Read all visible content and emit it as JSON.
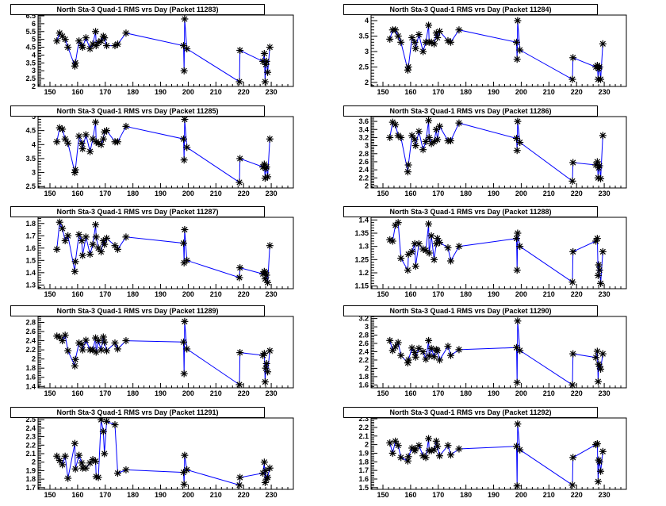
{
  "line_color": "#0000ff",
  "marker_color": "#000000",
  "x_days": [
    152.5,
    153.5,
    154.5,
    155.5,
    156.5,
    159,
    159.2,
    160.5,
    161.5,
    161.8,
    163,
    164.5,
    165.5,
    166.5,
    166.7,
    167.5,
    168.5,
    169.3,
    169.7,
    170.5,
    173.5,
    174.5,
    177.5,
    198.3,
    198.5,
    198.7,
    199.5,
    218.5,
    218.7,
    227,
    227.5,
    227.8,
    228,
    228.3,
    228.7,
    229.5
  ],
  "chart_data": [
    {
      "type": "line",
      "title": "North Sta-3 Quad-1 RMS vrs Day (Packet 11283)",
      "xlim": [
        145.7,
        238
      ],
      "ylim": [
        2,
        6.55
      ],
      "xticks": [
        150,
        160,
        170,
        180,
        190,
        200,
        210,
        220,
        230
      ],
      "yticks": [
        2,
        2.5,
        3,
        3.5,
        4,
        4.5,
        5,
        5.5,
        6,
        6.5
      ],
      "y": [
        4.9,
        5.4,
        5.2,
        5.0,
        4.5,
        3.3,
        3.5,
        4.9,
        4.6,
        4.5,
        5.1,
        4.4,
        4.7,
        5.5,
        4.6,
        4.8,
        4.9,
        5.2,
        5.1,
        4.6,
        4.6,
        4.7,
        5.4,
        4.6,
        3.0,
        6.3,
        4.4,
        2.3,
        4.3,
        3.6,
        4.1,
        2.3,
        3.4,
        3.6,
        2.9,
        4.5
      ]
    },
    {
      "type": "line",
      "title": "North Sta-3 Quad-1 RMS vrs Day (Packet 11284)",
      "xlim": [
        145.7,
        238
      ],
      "ylim": [
        1.87,
        4.18
      ],
      "xticks": [
        150,
        160,
        170,
        180,
        190,
        200,
        210,
        220,
        230
      ],
      "yticks": [
        2,
        2.5,
        3,
        3.5,
        4
      ],
      "y": [
        3.4,
        3.7,
        3.7,
        3.5,
        3.3,
        2.4,
        2.5,
        3.45,
        3.3,
        3.1,
        3.55,
        3.0,
        3.3,
        3.85,
        3.3,
        3.3,
        3.25,
        3.6,
        3.45,
        3.65,
        3.35,
        3.3,
        3.7,
        3.3,
        2.75,
        4.0,
        3.05,
        2.1,
        2.8,
        2.5,
        2.55,
        2.1,
        2.45,
        2.5,
        2.1,
        3.25
      ]
    },
    {
      "type": "line",
      "title": "North Sta-3 Quad-1 RMS vrs Day (Packet 11285)",
      "xlim": [
        145.7,
        238
      ],
      "ylim": [
        2.45,
        5.0
      ],
      "xticks": [
        150,
        160,
        170,
        180,
        190,
        200,
        210,
        220,
        230
      ],
      "yticks": [
        2.5,
        3,
        3.5,
        4,
        4.5,
        5
      ],
      "y": [
        4.1,
        4.6,
        4.55,
        4.2,
        4.05,
        3.0,
        3.1,
        4.3,
        4.05,
        3.85,
        4.35,
        3.75,
        4.2,
        4.8,
        4.1,
        4.05,
        4.0,
        4.2,
        4.45,
        4.5,
        4.1,
        4.1,
        4.65,
        4.2,
        3.45,
        4.9,
        3.9,
        2.65,
        3.5,
        3.2,
        3.3,
        2.8,
        3.15,
        3.2,
        2.85,
        4.2
      ]
    },
    {
      "type": "line",
      "title": "North Sta-3 Quad-1 RMS vrs Day (Packet 11286)",
      "xlim": [
        145.7,
        238
      ],
      "ylim": [
        1.95,
        3.72
      ],
      "xticks": [
        150,
        160,
        170,
        180,
        190,
        200,
        210,
        220,
        230
      ],
      "yticks": [
        2,
        2.2,
        2.4,
        2.6,
        2.8,
        3,
        3.2,
        3.4,
        3.6
      ],
      "y": [
        3.2,
        3.58,
        3.52,
        3.25,
        3.2,
        2.35,
        2.52,
        3.25,
        3.15,
        3.0,
        3.35,
        2.9,
        3.1,
        3.62,
        3.2,
        3.05,
        3.1,
        3.4,
        3.15,
        3.48,
        3.12,
        3.12,
        3.56,
        3.18,
        2.88,
        3.6,
        3.08,
        2.12,
        2.58,
        2.52,
        2.6,
        2.2,
        2.45,
        2.5,
        2.18,
        3.25
      ]
    },
    {
      "type": "line",
      "title": "North Sta-3 Quad-1 RMS vrs Day (Packet 11287)",
      "xlim": [
        145.7,
        238
      ],
      "ylim": [
        1.27,
        1.85
      ],
      "xticks": [
        150,
        160,
        170,
        180,
        190,
        200,
        210,
        220,
        230
      ],
      "yticks": [
        1.3,
        1.4,
        1.5,
        1.6,
        1.7,
        1.8
      ],
      "y": [
        1.59,
        1.81,
        1.76,
        1.66,
        1.7,
        1.41,
        1.49,
        1.71,
        1.66,
        1.54,
        1.69,
        1.55,
        1.63,
        1.79,
        1.69,
        1.6,
        1.57,
        1.66,
        1.63,
        1.68,
        1.62,
        1.59,
        1.69,
        1.64,
        1.48,
        1.75,
        1.5,
        1.36,
        1.44,
        1.39,
        1.41,
        1.35,
        1.4,
        1.38,
        1.32,
        1.62
      ]
    },
    {
      "type": "line",
      "title": "North Sta-3 Quad-1 RMS vrs Day (Packet 11288)",
      "xlim": [
        145.7,
        238
      ],
      "ylim": [
        1.14,
        1.41
      ],
      "xticks": [
        150,
        160,
        170,
        180,
        190,
        200,
        210,
        220,
        230
      ],
      "yticks": [
        1.15,
        1.2,
        1.25,
        1.3,
        1.35,
        1.4
      ],
      "y": [
        1.325,
        1.32,
        1.38,
        1.39,
        1.255,
        1.21,
        1.27,
        1.28,
        1.31,
        1.225,
        1.31,
        1.29,
        1.285,
        1.385,
        1.275,
        1.34,
        1.25,
        1.31,
        1.33,
        1.315,
        1.295,
        1.245,
        1.3,
        1.33,
        1.21,
        1.35,
        1.3,
        1.165,
        1.28,
        1.32,
        1.33,
        1.19,
        1.23,
        1.21,
        1.16,
        1.28
      ]
    },
    {
      "type": "line",
      "title": "North Sta-3 Quad-1 RMS vrs Day (Packet 11289)",
      "xlim": [
        145.7,
        238
      ],
      "ylim": [
        1.37,
        2.93
      ],
      "xticks": [
        150,
        160,
        170,
        180,
        190,
        200,
        210,
        220,
        230
      ],
      "yticks": [
        1.4,
        1.6,
        1.8,
        2,
        2.2,
        2.4,
        2.6,
        2.8
      ],
      "y": [
        2.5,
        2.48,
        2.4,
        2.52,
        2.18,
        1.85,
        1.99,
        2.35,
        2.32,
        2.2,
        2.41,
        2.2,
        2.2,
        2.46,
        2.15,
        2.4,
        2.2,
        2.48,
        2.37,
        2.18,
        2.35,
        2.22,
        2.4,
        2.37,
        1.68,
        2.82,
        2.22,
        1.44,
        2.14,
        2.08,
        2.12,
        1.5,
        1.8,
        1.9,
        1.72,
        2.18
      ]
    },
    {
      "type": "line",
      "title": "North Sta-3 Quad-1 RMS vrs Day (Packet 11290)",
      "xlim": [
        145.7,
        238
      ],
      "ylim": [
        1.53,
        3.25
      ],
      "xticks": [
        150,
        160,
        170,
        180,
        190,
        200,
        210,
        220,
        230
      ],
      "yticks": [
        1.6,
        1.8,
        2,
        2.2,
        2.4,
        2.6,
        2.8,
        3,
        3.2
      ],
      "y": [
        2.67,
        2.43,
        2.52,
        2.62,
        2.31,
        2.13,
        2.2,
        2.49,
        2.38,
        2.27,
        2.48,
        2.4,
        2.22,
        2.67,
        2.3,
        2.48,
        2.28,
        2.45,
        2.43,
        2.2,
        2.53,
        2.31,
        2.45,
        2.5,
        1.66,
        3.14,
        2.43,
        1.6,
        2.35,
        2.26,
        2.41,
        1.68,
        2.1,
        2.05,
        1.98,
        2.35
      ]
    },
    {
      "type": "line",
      "title": "North Sta-3 Quad-1 RMS vrs Day (Packet 11291)",
      "xlim": [
        145.7,
        238
      ],
      "ylim": [
        1.68,
        2.52
      ],
      "xticks": [
        150,
        160,
        170,
        180,
        190,
        200,
        210,
        220,
        230
      ],
      "yticks": [
        1.7,
        1.8,
        1.9,
        2,
        2.1,
        2.2,
        2.3,
        2.4,
        2.5
      ],
      "y": [
        2.07,
        2.02,
        1.97,
        2.07,
        1.81,
        2.22,
        1.92,
        2.08,
        1.99,
        1.93,
        1.93,
        1.99,
        2.03,
        2.01,
        1.83,
        1.82,
        2.5,
        2.36,
        2.1,
        2.48,
        2.44,
        1.87,
        1.91,
        1.88,
        1.74,
        2.08,
        1.91,
        1.73,
        1.82,
        1.87,
        2.0,
        1.76,
        1.9,
        1.8,
        1.82,
        1.93
      ]
    },
    {
      "type": "line",
      "title": "North Sta-3 Quad-1 RMS vrs Day (Packet 11292)",
      "xlim": [
        145.7,
        238
      ],
      "ylim": [
        1.48,
        2.31
      ],
      "xticks": [
        150,
        160,
        170,
        180,
        190,
        200,
        210,
        220,
        230
      ],
      "yticks": [
        1.5,
        1.6,
        1.7,
        1.8,
        1.9,
        2,
        2.1,
        2.2,
        2.3
      ],
      "y": [
        2.02,
        1.9,
        2.04,
        1.99,
        1.85,
        1.81,
        1.86,
        1.96,
        1.93,
        1.95,
        1.99,
        1.87,
        1.85,
        2.07,
        1.93,
        1.93,
        1.94,
        2.04,
        1.98,
        1.87,
        1.99,
        1.88,
        1.95,
        1.98,
        1.52,
        2.24,
        1.94,
        1.53,
        1.85,
        2.0,
        2.01,
        1.57,
        1.82,
        1.8,
        1.69,
        1.92
      ]
    }
  ]
}
